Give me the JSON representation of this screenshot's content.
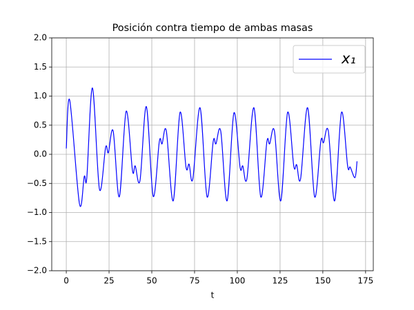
{
  "chart_data": {
    "type": "line",
    "title": "Posición contra tiempo de ambas masas",
    "xlabel": "t",
    "x": [
      0,
      2,
      7.7,
      10.5,
      12,
      15.3,
      19.4,
      23,
      24.6,
      27.4,
      31,
      35,
      38.7,
      40.3,
      43.1,
      46.8,
      50.8,
      54.4,
      56,
      58.5,
      62.5,
      66.5,
      70,
      71.8,
      74,
      78.2,
      82.3,
      85.9,
      87.5,
      90.3,
      94,
      98,
      101.6,
      103.2,
      105.6,
      109.7,
      113.7,
      117.3,
      118.9,
      121.7,
      125.4,
      129.4,
      133,
      134.7,
      137,
      141.1,
      145.2,
      148.8,
      150.4,
      153.2,
      156.9,
      160.9,
      164.5,
      166,
      168.8,
      170
    ],
    "series": [
      {
        "name": "x₁",
        "color": "#0000ff",
        "values": [
          0.1,
          0.93,
          -0.85,
          -0.38,
          -0.4,
          1.14,
          -0.6,
          0.12,
          0.03,
          0.4,
          -0.73,
          0.74,
          -0.28,
          -0.2,
          -0.45,
          0.82,
          -0.72,
          0.22,
          0.18,
          0.4,
          -0.8,
          0.72,
          -0.22,
          -0.17,
          -0.42,
          0.8,
          -0.73,
          0.22,
          0.18,
          0.4,
          -0.8,
          0.71,
          -0.22,
          -0.2,
          -0.42,
          0.8,
          -0.73,
          0.22,
          0.18,
          0.4,
          -0.8,
          0.72,
          -0.2,
          -0.18,
          -0.42,
          0.8,
          -0.73,
          0.22,
          0.2,
          0.4,
          -0.8,
          0.72,
          -0.2,
          -0.22,
          -0.4,
          -0.12
        ]
      }
    ],
    "xlim": [
      -8.5,
      179.5
    ],
    "ylim": [
      -2,
      2
    ],
    "xticks": [
      0,
      25,
      50,
      75,
      100,
      125,
      150,
      175
    ],
    "yticks": [
      {
        "value": -2,
        "label": "−2.0"
      },
      {
        "value": -1.5,
        "label": "−1.5"
      },
      {
        "value": -1,
        "label": "−1.0"
      },
      {
        "value": -0.5,
        "label": "−0.5"
      },
      {
        "value": 0,
        "label": "0.0"
      },
      {
        "value": 0.5,
        "label": "0.5"
      },
      {
        "value": 1,
        "label": "1.0"
      },
      {
        "value": 1.5,
        "label": "1.5"
      },
      {
        "value": 2,
        "label": "2.0"
      }
    ],
    "grid": true,
    "legend": "upper right"
  }
}
